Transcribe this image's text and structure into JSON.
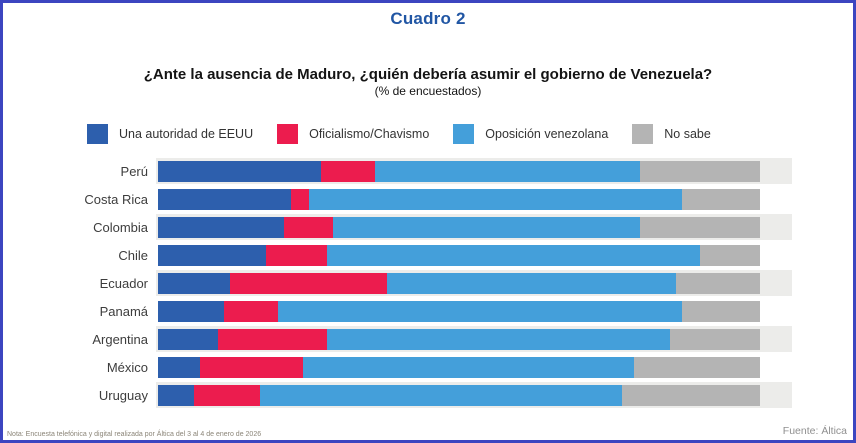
{
  "header": {
    "title": "Cuadro 2",
    "question": "¿Ante la ausencia de Maduro, ¿quién debería asumir el gobierno de Venezuela?",
    "subtitle": "(% de encuestados)"
  },
  "chart_data": {
    "type": "bar",
    "orientation": "horizontal",
    "stacked": true,
    "unit": "percent",
    "xlim": [
      0,
      100
    ],
    "axis_visible": false,
    "grid": false,
    "legend_position": "top",
    "row_band_color": "#ececea",
    "banded_rows": "odd",
    "categories": [
      "Perú",
      "Costa Rica",
      "Colombia",
      "Chile",
      "Ecuador",
      "Panamá",
      "Argentina",
      "México",
      "Uruguay"
    ],
    "series": [
      {
        "name": "Una autoridad de EEUU",
        "color": "#2d5fad",
        "values": [
          27,
          22,
          21,
          18,
          12,
          11,
          10,
          7,
          6
        ]
      },
      {
        "name": "Oficialismo/Chavismo",
        "color": "#ec1c4e",
        "values": [
          9,
          3,
          8,
          10,
          26,
          9,
          18,
          17,
          11
        ]
      },
      {
        "name": "Oposición venezolana",
        "color": "#449fda",
        "values": [
          44,
          62,
          51,
          62,
          48,
          67,
          57,
          55,
          60
        ]
      },
      {
        "name": "No sabe",
        "color": "#b4b4b4",
        "values": [
          20,
          13,
          20,
          10,
          14,
          13,
          15,
          21,
          23
        ]
      }
    ]
  },
  "footer": {
    "note": "Nota: Encuesta telefónica y digital realizada por Áltica del 3 al 4 de enero de 2026",
    "source": "Fuente: Áltica"
  },
  "colors": {
    "frame_border": "#3c45c0",
    "title_blue": "#2156a4",
    "question_text": "#141414",
    "category_label": "#3d3d3d",
    "note_text": "#8b8578",
    "source_text": "#8f8f8f"
  }
}
